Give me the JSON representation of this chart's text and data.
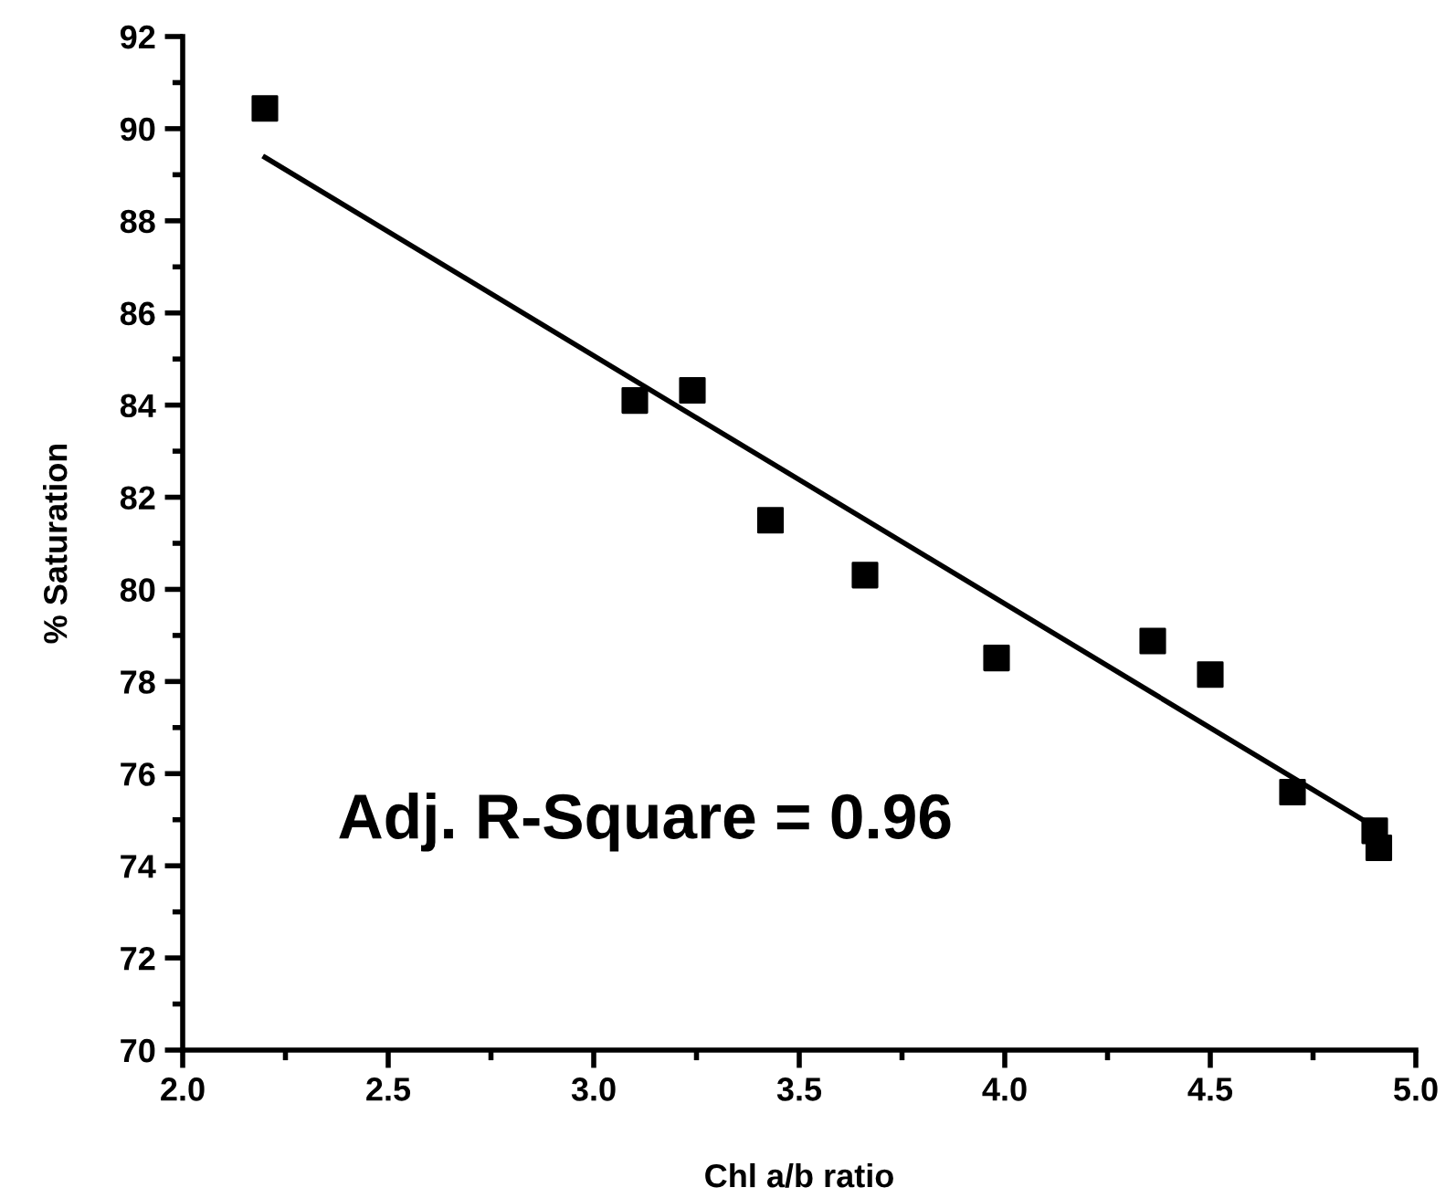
{
  "chart_data": {
    "type": "scatter",
    "xlabel": "Chl a/b ratio",
    "ylabel": "% Saturation",
    "annotations": [
      "Adj. R-Square = 0.96"
    ],
    "series": [
      {
        "color": "#000000",
        "marker": "square",
        "x": [
          2.2,
          3.1,
          3.24,
          3.43,
          3.66,
          3.98,
          4.36,
          4.5,
          4.7,
          4.9,
          4.91
        ],
        "values": [
          90.44,
          84.1,
          84.32,
          81.5,
          80.31,
          78.51,
          78.88,
          78.15,
          75.6,
          74.76,
          74.39
        ]
      },
      {
        "type": "line",
        "color": "#000000",
        "marker": "none",
        "line_style": "solid",
        "x": [
          2.2,
          4.9
        ],
        "values": [
          89.38,
          74.84
        ]
      }
    ],
    "xlim": [
      2.0,
      5.0
    ],
    "xticks": [
      {
        "value": 2.0,
        "label": "2.0"
      },
      {
        "value": 2.5,
        "label": "2.5"
      },
      {
        "value": 3.0,
        "label": "3.0"
      },
      {
        "value": 3.5,
        "label": "3.5"
      },
      {
        "value": 4.0,
        "label": "4.0"
      },
      {
        "value": 4.5,
        "label": "4.5"
      },
      {
        "value": 5.0,
        "label": "5.0"
      }
    ],
    "ylim": [
      70,
      92
    ],
    "yticks": [
      70,
      72,
      74,
      76,
      78,
      80,
      82,
      84,
      86,
      88,
      90,
      92
    ],
    "grid": false,
    "legend": false
  }
}
